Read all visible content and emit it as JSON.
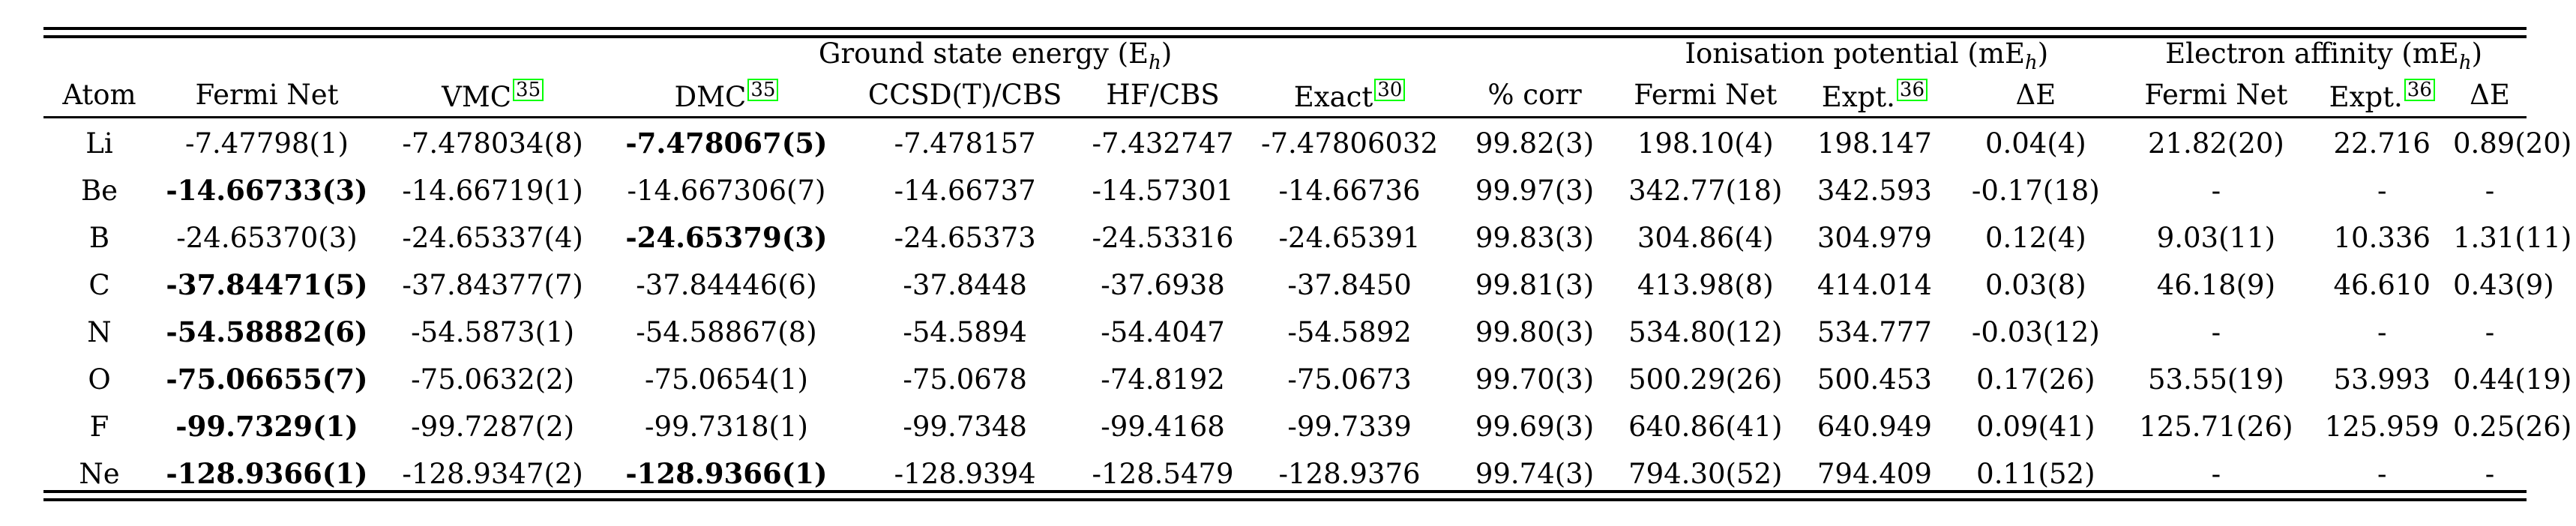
{
  "groups": {
    "ground_state": {
      "label": "Ground state energy (E",
      "sub": "h",
      "close": ")"
    },
    "ionisation": {
      "label": "Ionisation potential (mE",
      "sub": "h",
      "close": ")"
    },
    "electron_affinity": {
      "label": "Electron affinity (mE",
      "sub": "h",
      "close": ")"
    }
  },
  "columns": [
    {
      "key": "atom",
      "label": "Atom",
      "cite": ""
    },
    {
      "key": "fermi_net",
      "label": "Fermi Net",
      "cite": ""
    },
    {
      "key": "vmc",
      "label": "VMC",
      "cite": "35"
    },
    {
      "key": "dmc",
      "label": "DMC",
      "cite": "35"
    },
    {
      "key": "ccsd",
      "label": "CCSD(T)/CBS",
      "cite": ""
    },
    {
      "key": "hf",
      "label": "HF/CBS",
      "cite": ""
    },
    {
      "key": "exact",
      "label": "Exact",
      "cite": "30"
    },
    {
      "key": "corr",
      "label": "% corr",
      "cite": ""
    },
    {
      "key": "ip_fermi",
      "label": "Fermi Net",
      "cite": ""
    },
    {
      "key": "ip_expt",
      "label": "Expt.",
      "cite": "36"
    },
    {
      "key": "ip_de",
      "label": "ΔE",
      "cite": ""
    },
    {
      "key": "ea_fermi",
      "label": "Fermi Net",
      "cite": ""
    },
    {
      "key": "ea_expt",
      "label": "Expt.",
      "cite": "36"
    },
    {
      "key": "ea_de",
      "label": "ΔE",
      "cite": ""
    }
  ],
  "rows": [
    {
      "cells": [
        "Li",
        "-7.47798(1)",
        "-7.478034(8)",
        "-7.478067(5)",
        "-7.478157",
        "-7.432747",
        "-7.47806032",
        "99.82(3)",
        "198.10(4)",
        "198.147",
        "0.04(4)",
        "21.82(20)",
        "22.716",
        "0.89(20)"
      ],
      "bold": [
        3
      ]
    },
    {
      "cells": [
        "Be",
        "-14.66733(3)",
        "-14.66719(1)",
        "-14.667306(7)",
        "-14.66737",
        "-14.57301",
        "-14.66736",
        "99.97(3)",
        "342.77(18)",
        "342.593",
        "-0.17(18)",
        "-",
        "-",
        "-"
      ],
      "bold": [
        1
      ]
    },
    {
      "cells": [
        "B",
        "-24.65370(3)",
        "-24.65337(4)",
        "-24.65379(3)",
        "-24.65373",
        "-24.53316",
        "-24.65391",
        "99.83(3)",
        "304.86(4)",
        "304.979",
        "0.12(4)",
        "9.03(11)",
        "10.336",
        "1.31(11)"
      ],
      "bold": [
        3
      ]
    },
    {
      "cells": [
        "C",
        "-37.84471(5)",
        "-37.84377(7)",
        "-37.84446(6)",
        "-37.8448",
        "-37.6938",
        "-37.8450",
        "99.81(3)",
        "413.98(8)",
        "414.014",
        "0.03(8)",
        "46.18(9)",
        "46.610",
        "0.43(9)"
      ],
      "bold": [
        1
      ]
    },
    {
      "cells": [
        "N",
        "-54.58882(6)",
        "-54.5873(1)",
        "-54.58867(8)",
        "-54.5894",
        "-54.4047",
        "-54.5892",
        "99.80(3)",
        "534.80(12)",
        "534.777",
        "-0.03(12)",
        "-",
        "-",
        "-"
      ],
      "bold": [
        1
      ]
    },
    {
      "cells": [
        "O",
        "-75.06655(7)",
        "-75.0632(2)",
        "-75.0654(1)",
        "-75.0678",
        "-74.8192",
        "-75.0673",
        "99.70(3)",
        "500.29(26)",
        "500.453",
        "0.17(26)",
        "53.55(19)",
        "53.993",
        "0.44(19)"
      ],
      "bold": [
        1
      ]
    },
    {
      "cells": [
        "F",
        "-99.7329(1)",
        "-99.7287(2)",
        "-99.7318(1)",
        "-99.7348",
        "-99.4168",
        "-99.7339",
        "99.69(3)",
        "640.86(41)",
        "640.949",
        "0.09(41)",
        "125.71(26)",
        "125.959",
        "0.25(26)"
      ],
      "bold": [
        1
      ]
    },
    {
      "cells": [
        "Ne",
        "-128.9366(1)",
        "-128.9347(2)",
        "-128.9366(1)",
        "-128.9394",
        "-128.5479",
        "-128.9376",
        "99.74(3)",
        "794.30(52)",
        "794.409",
        "0.11(52)",
        "-",
        "-",
        "-"
      ],
      "bold": [
        1,
        3
      ]
    }
  ]
}
